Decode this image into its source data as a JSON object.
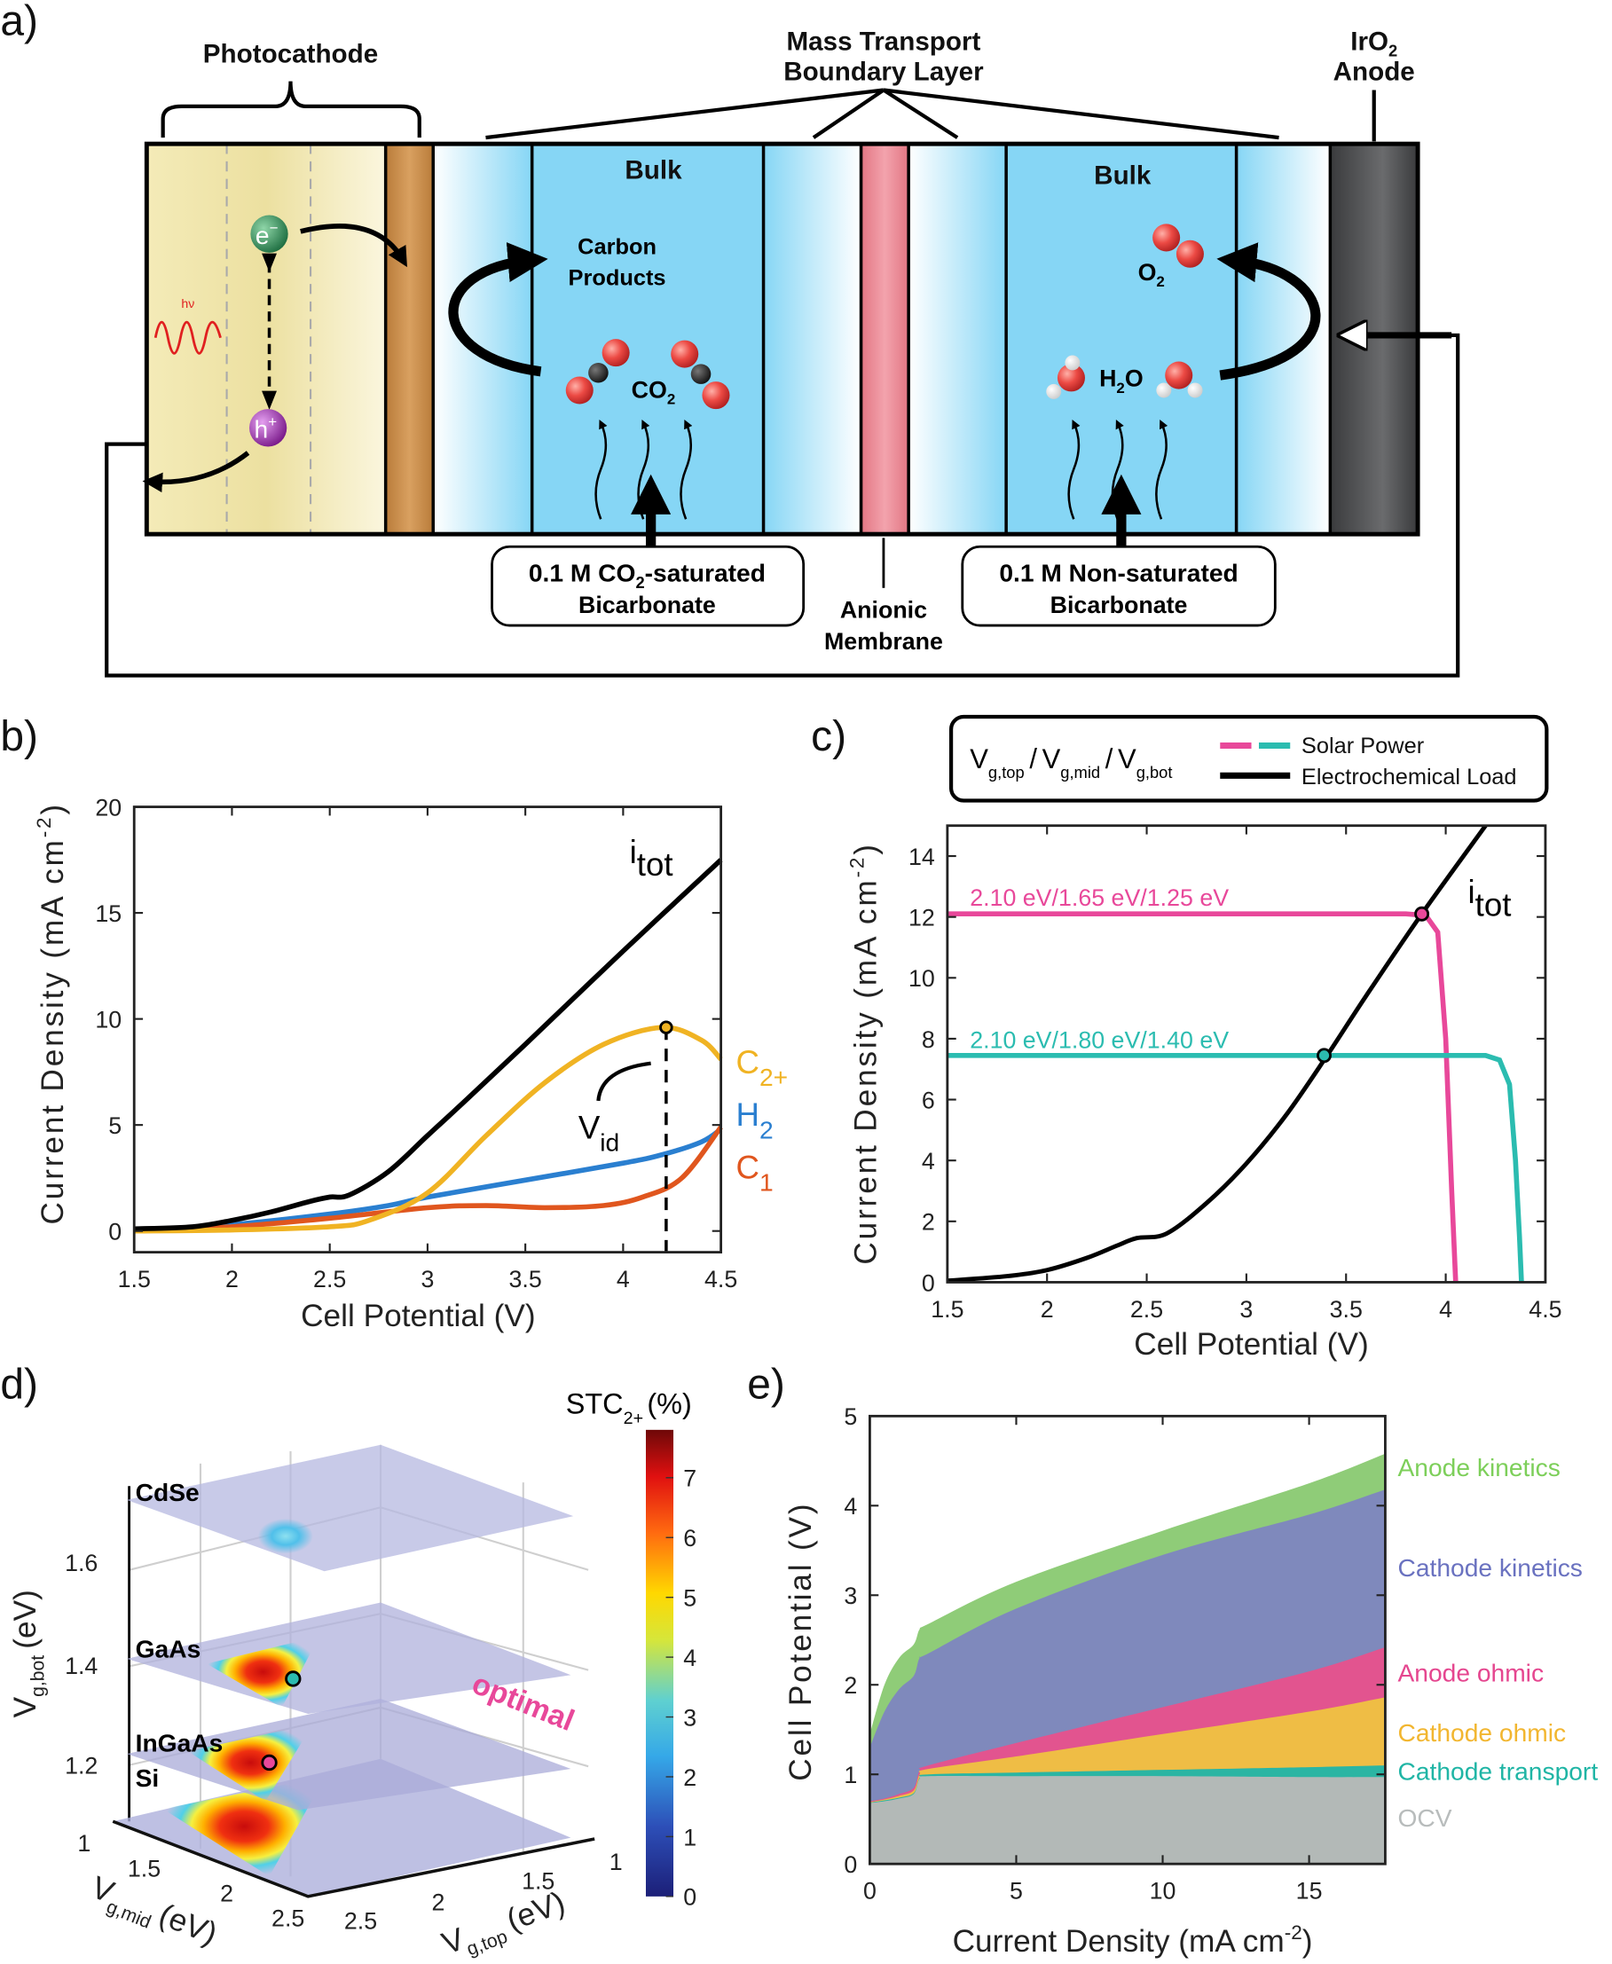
{
  "panel_labels": {
    "a": "a)",
    "b": "b)",
    "c": "c)",
    "d": "d)",
    "e": "e)"
  },
  "panel_a": {
    "photocathode": "Photocathode",
    "boundary_layer": [
      "Mass Transport",
      "Boundary Layer"
    ],
    "anode": {
      "main": "IrO",
      "sub": "2",
      "line2": "Anode"
    },
    "bulk_left": "Bulk",
    "bulk_right": "Bulk",
    "carbon_products": [
      "Carbon",
      "Products"
    ],
    "co2": {
      "main": "CO",
      "sub": "2"
    },
    "o2": {
      "main": "O",
      "sub": "2"
    },
    "h2o": {
      "a": "H",
      "sub": "2",
      "b": "O"
    },
    "electron": {
      "main": "e",
      "sup": "−"
    },
    "hole": {
      "main": "h",
      "sup": "+"
    },
    "photon": "hν",
    "catholyte": {
      "pre": "0.1 M CO",
      "sub": "2",
      "post": "-saturated",
      "line2": "Bicarbonate"
    },
    "anolyte": {
      "line1": "0.1 M Non-saturated",
      "line2": "Bicarbonate"
    },
    "membrane": [
      "Anionic",
      "Membrane"
    ],
    "colors": {
      "photocathode": "#f5ecb8",
      "catalyst": "#c98f4a",
      "electrolyte": "#86d6f5",
      "membrane": "#ec8a96",
      "anode": "#4a4b4d",
      "oxygen": "#e84545",
      "carbon": "#222222",
      "electron": "#2f8f5a",
      "hole": "#9b2fa8"
    }
  },
  "chart_data": [
    {
      "panel": "b",
      "type": "line",
      "xlabel": "Cell Potential (V)",
      "ylabel": {
        "main": "Current Density (mA cm",
        "sup": "-2",
        "end": ")"
      },
      "xlim": [
        1.5,
        4.5
      ],
      "ylim": [
        -1,
        20
      ],
      "xticks": [
        "1.5",
        "2",
        "2.5",
        "3",
        "3.5",
        "4",
        "4.5"
      ],
      "yticks": [
        "0",
        "5",
        "10",
        "15",
        "20"
      ],
      "series": [
        {
          "label": {
            "main": "i",
            "sub": "tot"
          },
          "color": "#000000",
          "x": [
            1.5,
            1.8,
            2.0,
            2.2,
            2.4,
            2.5,
            2.6,
            2.8,
            3.0,
            3.2,
            3.5,
            4.0,
            4.5
          ],
          "y": [
            0.1,
            0.2,
            0.5,
            0.9,
            1.4,
            1.6,
            1.7,
            2.8,
            4.5,
            6.2,
            8.8,
            13.2,
            17.5
          ]
        },
        {
          "label": {
            "main": "C",
            "sub": "2+"
          },
          "color": "#f0b323",
          "x": [
            1.5,
            2.0,
            2.5,
            2.7,
            3.0,
            3.3,
            3.6,
            3.9,
            4.2,
            4.4,
            4.5
          ],
          "y": [
            0.0,
            0.05,
            0.2,
            0.5,
            1.8,
            4.5,
            7.0,
            8.8,
            9.6,
            9.0,
            8.1
          ]
        },
        {
          "label": {
            "main": "H",
            "sub": "2"
          },
          "color": "#2a7fd0",
          "x": [
            1.5,
            2.0,
            2.5,
            2.8,
            3.0,
            3.5,
            4.0,
            4.2,
            4.4,
            4.5
          ],
          "y": [
            0.0,
            0.3,
            0.8,
            1.2,
            1.6,
            2.4,
            3.2,
            3.6,
            4.2,
            4.8
          ]
        },
        {
          "label": {
            "main": "C",
            "sub": "1"
          },
          "color": "#e0561e",
          "x": [
            1.5,
            2.0,
            2.5,
            3.0,
            3.3,
            3.6,
            3.9,
            4.1,
            4.3,
            4.5
          ],
          "y": [
            0.0,
            0.2,
            0.6,
            1.1,
            1.2,
            1.1,
            1.2,
            1.6,
            2.5,
            4.9
          ]
        }
      ],
      "marker": {
        "x": 4.22,
        "y": 9.6
      },
      "vline": {
        "x": 4.22,
        "label": {
          "main": "V",
          "sub": "id"
        }
      }
    },
    {
      "panel": "c",
      "type": "line",
      "xlabel": "Cell Potential (V)",
      "ylabel": {
        "main": "Current Density (mA cm",
        "sup": "-2",
        "end": ")"
      },
      "xlim": [
        1.5,
        4.5
      ],
      "ylim": [
        0,
        15
      ],
      "xticks": [
        "1.5",
        "2",
        "2.5",
        "3",
        "3.5",
        "4",
        "4.5"
      ],
      "yticks": [
        "0",
        "2",
        "4",
        "6",
        "8",
        "10",
        "12",
        "14"
      ],
      "legend": {
        "title": {
          "v1": "V",
          "s1": "g,top",
          "v2": "V",
          "s2": "g,mid",
          "v3": "V",
          "s3": "g,bot",
          "sep": "/"
        },
        "entries": [
          "Solar Power",
          "Electrochemical Load"
        ]
      },
      "series": [
        {
          "label": "2.10 eV/1.65 eV/1.25 eV",
          "color": "#e8489a",
          "role": "Solar Power",
          "x": [
            1.5,
            3.8,
            3.9,
            3.96,
            4.0,
            4.03,
            4.05
          ],
          "y": [
            12.1,
            12.1,
            12.05,
            11.5,
            8.0,
            3.0,
            0.0
          ]
        },
        {
          "label": "2.10 eV/1.80 eV/1.40 eV",
          "color": "#2bbcb0",
          "role": "Solar Power",
          "x": [
            1.5,
            4.2,
            4.27,
            4.32,
            4.35,
            4.37,
            4.38
          ],
          "y": [
            7.45,
            7.45,
            7.3,
            6.5,
            4.0,
            1.5,
            0.0
          ]
        },
        {
          "label": {
            "main": "i",
            "sub": "tot"
          },
          "color": "#000000",
          "role": "Electrochemical Load",
          "x": [
            1.5,
            1.8,
            2.0,
            2.2,
            2.35,
            2.45,
            2.6,
            2.8,
            3.0,
            3.2,
            3.4,
            3.6,
            3.88,
            4.2
          ],
          "y": [
            0.05,
            0.2,
            0.4,
            0.8,
            1.2,
            1.45,
            1.6,
            2.6,
            3.9,
            5.5,
            7.4,
            9.4,
            12.1,
            15.0
          ]
        }
      ],
      "markers": [
        {
          "x": 3.88,
          "y": 12.1,
          "color": "#e8489a"
        },
        {
          "x": 3.39,
          "y": 7.45,
          "color": "#2bbcb0"
        }
      ]
    },
    {
      "panel": "e",
      "type": "area",
      "stacked": true,
      "xlabel": {
        "main": "Current Density (mA cm",
        "sup": "-2",
        "end": ")"
      },
      "ylabel": "Cell Potential (V)",
      "xlim": [
        0,
        17.6
      ],
      "ylim": [
        0,
        5
      ],
      "xticks": [
        "0",
        "5",
        "10",
        "15"
      ],
      "yticks": [
        "0",
        "1",
        "2",
        "3",
        "4",
        "5"
      ],
      "x": [
        0,
        0.5,
        1.0,
        1.5,
        1.7,
        2.0,
        5.0,
        10.0,
        15.0,
        17.6
      ],
      "layers": [
        {
          "name": "OCV",
          "color": "#b3b9b7",
          "top": [
            0.68,
            0.7,
            0.73,
            0.78,
            0.95,
            0.98,
            0.98,
            0.98,
            0.97,
            0.97
          ]
        },
        {
          "name": "Cathode transport",
          "color": "#2bb5a3",
          "top": [
            0.685,
            0.71,
            0.74,
            0.79,
            0.96,
            1.0,
            1.02,
            1.05,
            1.08,
            1.1
          ]
        },
        {
          "name": "Cathode ohmic",
          "color": "#efbd45",
          "top": [
            0.69,
            0.72,
            0.76,
            0.82,
            1.0,
            1.06,
            1.2,
            1.45,
            1.7,
            1.86
          ]
        },
        {
          "name": "Anode ohmic",
          "color": "#e2548f",
          "top": [
            0.7,
            0.73,
            0.78,
            0.85,
            1.04,
            1.1,
            1.35,
            1.75,
            2.15,
            2.42
          ]
        },
        {
          "name": "Cathode kinetics",
          "color": "#7f89bc",
          "top": [
            1.3,
            1.7,
            1.95,
            2.1,
            2.3,
            2.35,
            2.85,
            3.45,
            3.9,
            4.18
          ]
        },
        {
          "name": "Anode kinetics",
          "color": "#8fcc78",
          "top": [
            1.45,
            2.0,
            2.3,
            2.45,
            2.62,
            2.68,
            3.15,
            3.72,
            4.25,
            4.58
          ]
        }
      ],
      "label_colors": {
        "OCV": "#b8bcbc",
        "Cathode transport": "#1fb5a5",
        "Cathode ohmic": "#f2b630",
        "Anode ohmic": "#e5468f",
        "Cathode kinetics": "#6a72c0",
        "Anode kinetics": "#7dcf5a"
      }
    }
  ],
  "panel_d": {
    "type": "3d-surface-slices",
    "colorbar": {
      "label": {
        "main": "STC",
        "sub": "2+",
        "end": "(%)"
      },
      "range": [
        0,
        7.8
      ],
      "ticks": [
        "0",
        "1",
        "2",
        "3",
        "4",
        "5",
        "6",
        "7"
      ]
    },
    "slices": [
      {
        "name": "CdSe",
        "v_g_bot": 1.74
      },
      {
        "name": "GaAs",
        "v_g_bot": 1.42
      },
      {
        "name": "InGaAs",
        "v_g_bot": 1.24
      },
      {
        "name": "Si",
        "v_g_bot": 1.12
      }
    ],
    "annotation": "optimal",
    "axes": {
      "z": {
        "main": "V",
        "sub": "g,bot",
        "end": "(eV)",
        "ticks": [
          "1.6",
          "1.4",
          "1.2"
        ]
      },
      "mid": {
        "main": "V",
        "sub": "g,mid",
        "end": "(eV)",
        "ticks": [
          "1",
          "1.5",
          "2",
          "2.5"
        ]
      },
      "top": {
        "main": "V",
        "sub": "g,top",
        "end": "(eV)",
        "ticks": [
          "1",
          "1.5",
          "2",
          "2.5"
        ]
      }
    },
    "markers": [
      {
        "slice": "GaAs",
        "color": "#2bbcb0"
      },
      {
        "slice": "InGaAs",
        "color": "#e8489a"
      }
    ]
  }
}
